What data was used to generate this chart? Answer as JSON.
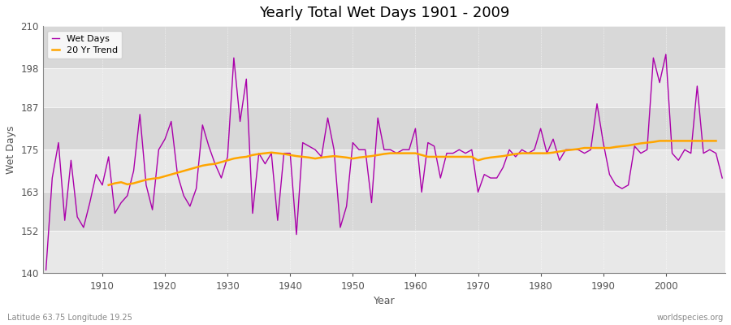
{
  "title": "Yearly Total Wet Days 1901 - 2009",
  "xlabel": "Year",
  "ylabel": "Wet Days",
  "subtitle_left": "Latitude 63.75 Longitude 19.25",
  "subtitle_right": "worldspecies.org",
  "ylim": [
    140,
    210
  ],
  "yticks": [
    140,
    152,
    163,
    175,
    187,
    198,
    210
  ],
  "line_color": "#aa00aa",
  "trend_color": "#ffa500",
  "fig_bg_color": "#ffffff",
  "plot_bg_color": "#e8e8e8",
  "band_color_light": "#e0e0e0",
  "band_color_dark": "#d0d0d0",
  "years": [
    1901,
    1902,
    1903,
    1904,
    1905,
    1906,
    1907,
    1908,
    1909,
    1910,
    1911,
    1912,
    1913,
    1914,
    1915,
    1916,
    1917,
    1918,
    1919,
    1920,
    1921,
    1922,
    1923,
    1924,
    1925,
    1926,
    1927,
    1928,
    1929,
    1930,
    1931,
    1932,
    1933,
    1934,
    1935,
    1936,
    1937,
    1938,
    1939,
    1940,
    1941,
    1942,
    1943,
    1944,
    1945,
    1946,
    1947,
    1948,
    1949,
    1950,
    1951,
    1952,
    1953,
    1954,
    1955,
    1956,
    1957,
    1958,
    1959,
    1960,
    1961,
    1962,
    1963,
    1964,
    1965,
    1966,
    1967,
    1968,
    1969,
    1970,
    1971,
    1972,
    1973,
    1974,
    1975,
    1976,
    1977,
    1978,
    1979,
    1980,
    1981,
    1982,
    1983,
    1984,
    1985,
    1986,
    1987,
    1988,
    1989,
    1990,
    1991,
    1992,
    1993,
    1994,
    1995,
    1996,
    1997,
    1998,
    1999,
    2000,
    2001,
    2002,
    2003,
    2004,
    2005,
    2006,
    2007,
    2008,
    2009
  ],
  "wet_days": [
    141,
    167,
    177,
    155,
    172,
    156,
    153,
    160,
    168,
    165,
    173,
    157,
    160,
    162,
    169,
    185,
    165,
    158,
    175,
    178,
    183,
    168,
    162,
    159,
    164,
    182,
    176,
    171,
    167,
    173,
    201,
    183,
    195,
    157,
    174,
    171,
    174,
    155,
    174,
    174,
    151,
    177,
    176,
    175,
    173,
    184,
    175,
    153,
    159,
    177,
    175,
    175,
    160,
    184,
    175,
    175,
    174,
    175,
    175,
    181,
    163,
    177,
    176,
    167,
    174,
    174,
    175,
    174,
    175,
    163,
    168,
    167,
    167,
    170,
    175,
    173,
    175,
    174,
    175,
    181,
    174,
    178,
    172,
    175,
    175,
    175,
    174,
    175,
    188,
    177,
    168,
    165,
    164,
    165,
    176,
    174,
    175,
    201,
    194,
    202,
    174,
    172,
    175,
    174,
    193,
    174,
    175,
    174,
    167
  ],
  "trend": [
    null,
    null,
    null,
    null,
    null,
    null,
    null,
    null,
    null,
    null,
    165,
    165.5,
    165.8,
    165.2,
    165.5,
    166,
    166.5,
    166.8,
    167,
    167.5,
    168,
    168.5,
    169,
    169.5,
    170,
    170.5,
    170.8,
    171,
    171.5,
    172,
    172.5,
    172.8,
    173,
    173.5,
    173.8,
    174,
    174.2,
    174.0,
    173.8,
    173.5,
    173.2,
    173.0,
    172.8,
    172.5,
    172.8,
    173.0,
    173.2,
    173.0,
    172.8,
    172.5,
    172.8,
    173.0,
    173.2,
    173.5,
    173.8,
    174.0,
    174.0,
    174.0,
    174.0,
    174.0,
    173.5,
    173.0,
    173.0,
    173.0,
    173.0,
    173.0,
    173.0,
    173.0,
    173.0,
    172.0,
    172.5,
    172.8,
    173.0,
    173.2,
    173.5,
    173.8,
    174.0,
    174.0,
    174.0,
    174.0,
    174.0,
    174.2,
    174.5,
    174.8,
    175.0,
    175.2,
    175.5,
    175.5,
    175.5,
    175.5,
    175.5,
    175.8,
    176.0,
    176.2,
    176.5,
    176.8,
    177.0,
    177.2,
    177.5,
    177.5,
    177.5,
    177.5,
    177.5,
    177.5,
    177.5,
    177.5,
    177.5,
    177.5
  ]
}
